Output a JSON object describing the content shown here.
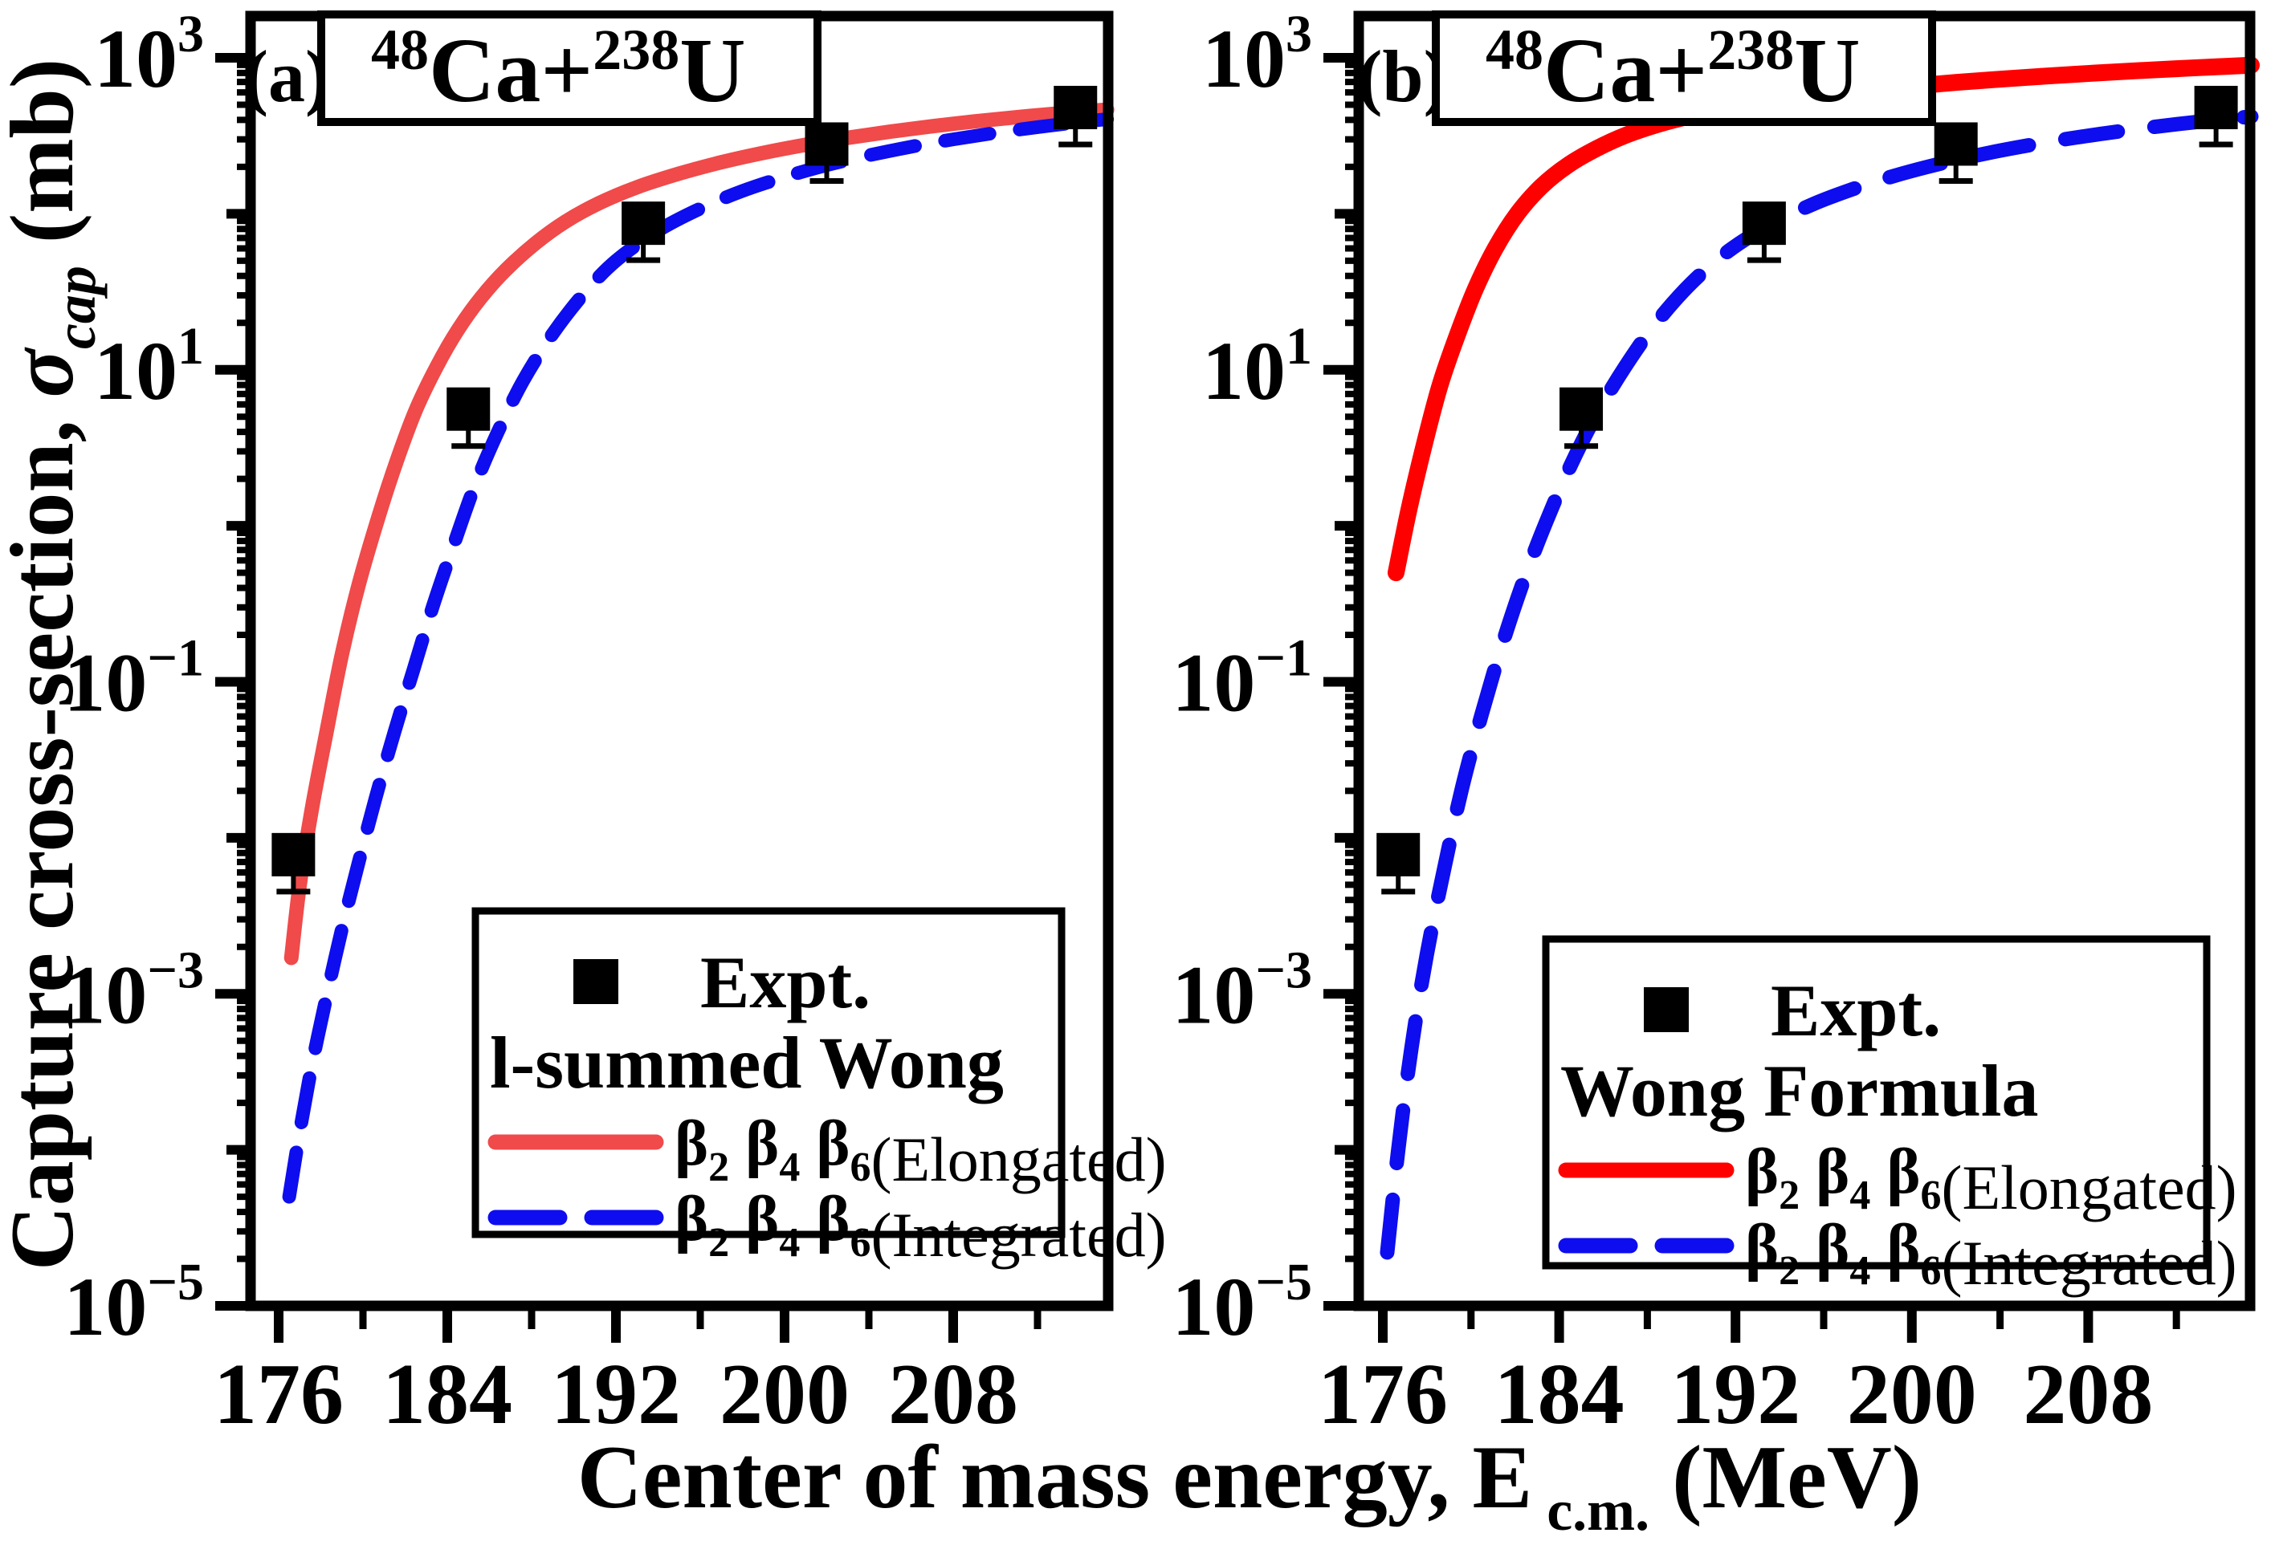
{
  "figure": {
    "background": "#ffffff",
    "x_axis": {
      "title_prefix": "Center of mass energy, E",
      "title_sub": "c.m.",
      "title_suffix": " (MeV)",
      "major_ticks": [
        176,
        184,
        192,
        200,
        208
      ],
      "minor_ticks": [
        180,
        188,
        196,
        204,
        212
      ]
    },
    "y_axis": {
      "title_prefix": "Capture cross-section,  ",
      "title_sigma": "σ",
      "title_sub": "cap",
      "title_suffix": " (mb)",
      "labeled_decades": [
        {
          "base": "10",
          "exp": "3",
          "log": 3
        },
        {
          "base": "10",
          "exp": "1",
          "log": 1
        },
        {
          "base": "10",
          "exp": "−1",
          "log": -1
        },
        {
          "base": "10",
          "exp": "−3",
          "log": -3
        },
        {
          "base": "10",
          "exp": "−5",
          "log": -5
        }
      ],
      "unlabeled_decades": [
        2,
        0,
        -2,
        -4
      ]
    },
    "colors": {
      "black": "#000000",
      "red_panel_a": "#F04A4A",
      "red_panel_b": "#FF0000",
      "blue": "#0D0DEF",
      "white": "#ffffff"
    }
  },
  "chart_data": [
    {
      "type": "line",
      "panel_label": "(a)",
      "reaction": {
        "mass1": "48",
        "sym1": "Ca+",
        "mass2": "238",
        "sym2": "U"
      },
      "xlabel": "Center of mass energy, E c.m. (MeV)",
      "ylabel": "Capture cross-section, σ cap (mb)",
      "x_range": [
        174.9,
        215.4
      ],
      "y_log_range": [
        -5,
        3.268
      ],
      "legend": {
        "expt_label": "Expt.",
        "model_label": "l-summed Wong",
        "series_labels": [
          {
            "beta_subs": [
              "2",
              "4",
              "6"
            ],
            "suffix": "(Elongated)"
          },
          {
            "beta_subs": [
              "2",
              "4",
              "6"
            ],
            "suffix": "(Integrated)"
          }
        ]
      },
      "expt_points": [
        [
          176.7,
          0.0078
        ],
        [
          185.0,
          5.6
        ],
        [
          193.3,
          87
        ],
        [
          202.0,
          280
        ],
        [
          213.8,
          480
        ]
      ],
      "series": [
        {
          "name": "beta2-beta4-beta6-elongated",
          "style": "solid",
          "color_key": "red_panel_a",
          "points": [
            [
              176.6,
              0.0017
            ],
            [
              177.0,
              0.005
            ],
            [
              177.6,
              0.016
            ],
            [
              178.3,
              0.05
            ],
            [
              179.0,
              0.15
            ],
            [
              179.8,
              0.42
            ],
            [
              180.7,
              1.1
            ],
            [
              181.6,
              2.6
            ],
            [
              182.5,
              5.5
            ],
            [
              183.5,
              10.5
            ],
            [
              184.5,
              18
            ],
            [
              185.6,
              29
            ],
            [
              186.8,
              44
            ],
            [
              188.2,
              65
            ],
            [
              189.6,
              89
            ],
            [
              191.2,
              117
            ],
            [
              193.0,
              148
            ],
            [
              195.0,
              181
            ],
            [
              197.0,
              214
            ],
            [
              199.0,
              246
            ],
            [
              201.0,
              277
            ],
            [
              203.0,
              307
            ],
            [
              205.0,
              336
            ],
            [
              207.0,
              364
            ],
            [
              209.0,
              391
            ],
            [
              211.0,
              416
            ],
            [
              213.0,
              440
            ],
            [
              215.3,
              465
            ]
          ]
        },
        {
          "name": "beta2-beta4-beta6-integrated",
          "style": "dashed",
          "color_key": "blue",
          "points": [
            [
              176.5,
              5e-05
            ],
            [
              177.0,
              0.00013
            ],
            [
              177.6,
              0.00036
            ],
            [
              178.3,
              0.001
            ],
            [
              179.0,
              0.0026
            ],
            [
              179.8,
              0.007
            ],
            [
              180.6,
              0.018
            ],
            [
              181.5,
              0.048
            ],
            [
              182.4,
              0.12
            ],
            [
              183.3,
              0.3
            ],
            [
              184.3,
              0.75
            ],
            [
              185.3,
              1.8
            ],
            [
              186.4,
              4.0
            ],
            [
              187.6,
              8.5
            ],
            [
              189.0,
              17
            ],
            [
              190.5,
              31
            ],
            [
              192.0,
              50
            ],
            [
              194.0,
              78
            ],
            [
              196.0,
              108
            ],
            [
              198.0,
              140
            ],
            [
              200.0,
              172
            ],
            [
              202.0,
              205
            ],
            [
              204.0,
              237
            ],
            [
              206.0,
              269
            ],
            [
              208.0,
              300
            ],
            [
              210.0,
              330
            ],
            [
              212.0,
              359
            ],
            [
              214.0,
              387
            ],
            [
              215.3,
              404
            ]
          ]
        }
      ]
    },
    {
      "type": "line",
      "panel_label": "(b)",
      "reaction": {
        "mass1": "48",
        "sym1": "Ca+",
        "mass2": "238",
        "sym2": "U"
      },
      "xlabel": "Center of mass energy, E c.m. (MeV)",
      "ylabel": "Capture cross-section, σ cap (mb)",
      "x_range": [
        174.9,
        215.4
      ],
      "y_log_range": [
        -5,
        3.268
      ],
      "legend": {
        "expt_label": "Expt.",
        "model_label": "Wong Formula",
        "series_labels": [
          {
            "beta_subs": [
              "2",
              "4",
              "6"
            ],
            "suffix": "(Elongated)"
          },
          {
            "beta_subs": [
              "2",
              "4",
              "6"
            ],
            "suffix": "(Integrated)"
          }
        ]
      },
      "expt_points": [
        [
          176.7,
          0.0078
        ],
        [
          185.0,
          5.6
        ],
        [
          193.3,
          87
        ],
        [
          202.0,
          280
        ],
        [
          213.8,
          480
        ]
      ],
      "series": [
        {
          "name": "beta2-beta4-beta6-elongated",
          "style": "solid",
          "color_key": "red_panel_b",
          "points": [
            [
              176.6,
              0.5
            ],
            [
              177.2,
              1.3
            ],
            [
              177.9,
              3.4
            ],
            [
              178.6,
              8
            ],
            [
              179.4,
              17
            ],
            [
              180.2,
              33
            ],
            [
              181.1,
              60
            ],
            [
              182.1,
              100
            ],
            [
              183.2,
              150
            ],
            [
              184.4,
              205
            ],
            [
              185.7,
              262
            ],
            [
              187.0,
              318
            ],
            [
              188.5,
              375
            ],
            [
              190.0,
              425
            ],
            [
              192.0,
              482
            ],
            [
              194.0,
              532
            ],
            [
              196.0,
              578
            ],
            [
              198.0,
              620
            ],
            [
              200.0,
              658
            ],
            [
              202.0,
              695
            ],
            [
              204.0,
              729
            ],
            [
              206.0,
              762
            ],
            [
              208.0,
              793
            ],
            [
              210.0,
              823
            ],
            [
              212.0,
              851
            ],
            [
              214.0,
              878
            ],
            [
              215.4,
              896
            ]
          ]
        },
        {
          "name": "beta2-beta4-beta6-integrated",
          "style": "dashed",
          "color_key": "blue",
          "points": [
            [
              176.2,
              2.2e-05
            ],
            [
              176.7,
              0.0001
            ],
            [
              177.3,
              0.00045
            ],
            [
              178.0,
              0.0018
            ],
            [
              178.8,
              0.0065
            ],
            [
              179.6,
              0.021
            ],
            [
              180.5,
              0.063
            ],
            [
              181.4,
              0.17
            ],
            [
              182.4,
              0.45
            ],
            [
              183.4,
              1.05
            ],
            [
              184.5,
              2.4
            ],
            [
              185.7,
              5.2
            ],
            [
              187.0,
              10.5
            ],
            [
              188.4,
              20
            ],
            [
              190.0,
              36
            ],
            [
              191.7,
              58
            ],
            [
              193.5,
              84
            ],
            [
              195.5,
              115
            ],
            [
              197.5,
              147
            ],
            [
              199.5,
              180
            ],
            [
              201.5,
              213
            ],
            [
              203.5,
              246
            ],
            [
              205.5,
              278
            ],
            [
              207.5,
              309
            ],
            [
              209.5,
              339
            ],
            [
              211.5,
              368
            ],
            [
              213.5,
              396
            ],
            [
              215.4,
              420
            ]
          ]
        }
      ]
    }
  ]
}
